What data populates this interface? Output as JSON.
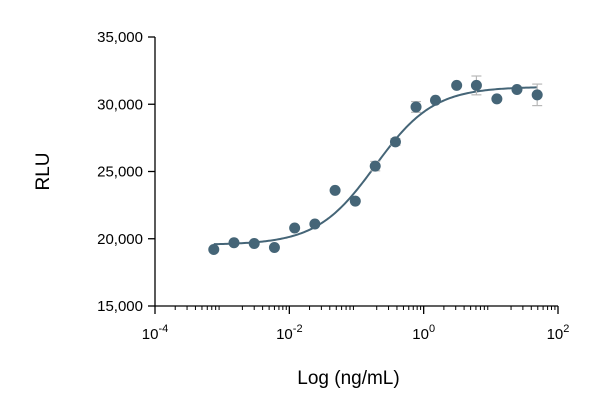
{
  "chart_data": {
    "type": "scatter",
    "title": "",
    "xlabel": "Log (ng/mL)",
    "ylabel": "RLU",
    "x_scale": "log10",
    "xlim": [
      0.0001,
      100
    ],
    "ylim": [
      15000,
      35000
    ],
    "x_ticks": [
      {
        "value": 0.0001,
        "base": "10",
        "exp": "-4"
      },
      {
        "value": 0.01,
        "base": "10",
        "exp": "-2"
      },
      {
        "value": 1,
        "base": "10",
        "exp": "0"
      },
      {
        "value": 100,
        "base": "10",
        "exp": "2"
      }
    ],
    "y_ticks": [
      {
        "value": 15000,
        "label": "15,000"
      },
      {
        "value": 20000,
        "label": "20,000"
      },
      {
        "value": 25000,
        "label": "25,000"
      },
      {
        "value": 30000,
        "label": "30,000"
      },
      {
        "value": 35000,
        "label": "35,000"
      }
    ],
    "grid": false,
    "legend": "none",
    "marker_color": "#456577",
    "curve_color": "#456577",
    "errorbar_color": "#b8b8b8",
    "points": [
      {
        "x": 0.00075,
        "y": 19200,
        "err": 0
      },
      {
        "x": 0.0015,
        "y": 19700,
        "err": 0
      },
      {
        "x": 0.003,
        "y": 19650,
        "err": 0
      },
      {
        "x": 0.006,
        "y": 19350,
        "err": 0
      },
      {
        "x": 0.012,
        "y": 20800,
        "err": 0
      },
      {
        "x": 0.024,
        "y": 21100,
        "err": 0
      },
      {
        "x": 0.048,
        "y": 23600,
        "err": 0
      },
      {
        "x": 0.096,
        "y": 22800,
        "err": 0
      },
      {
        "x": 0.19,
        "y": 25400,
        "err": 350
      },
      {
        "x": 0.38,
        "y": 27200,
        "err": 250
      },
      {
        "x": 0.77,
        "y": 29800,
        "err": 400
      },
      {
        "x": 1.5,
        "y": 30300,
        "err": 0
      },
      {
        "x": 3.1,
        "y": 31400,
        "err": 0
      },
      {
        "x": 6.1,
        "y": 31400,
        "err": 700
      },
      {
        "x": 12.3,
        "y": 30400,
        "err": 0
      },
      {
        "x": 24.5,
        "y": 31100,
        "err": 0
      },
      {
        "x": 49,
        "y": 30700,
        "err": 800
      }
    ],
    "fit": {
      "model": "4PL",
      "bottom": 19550,
      "top": 31300,
      "ec50": 0.19,
      "hill": 1.0
    }
  }
}
